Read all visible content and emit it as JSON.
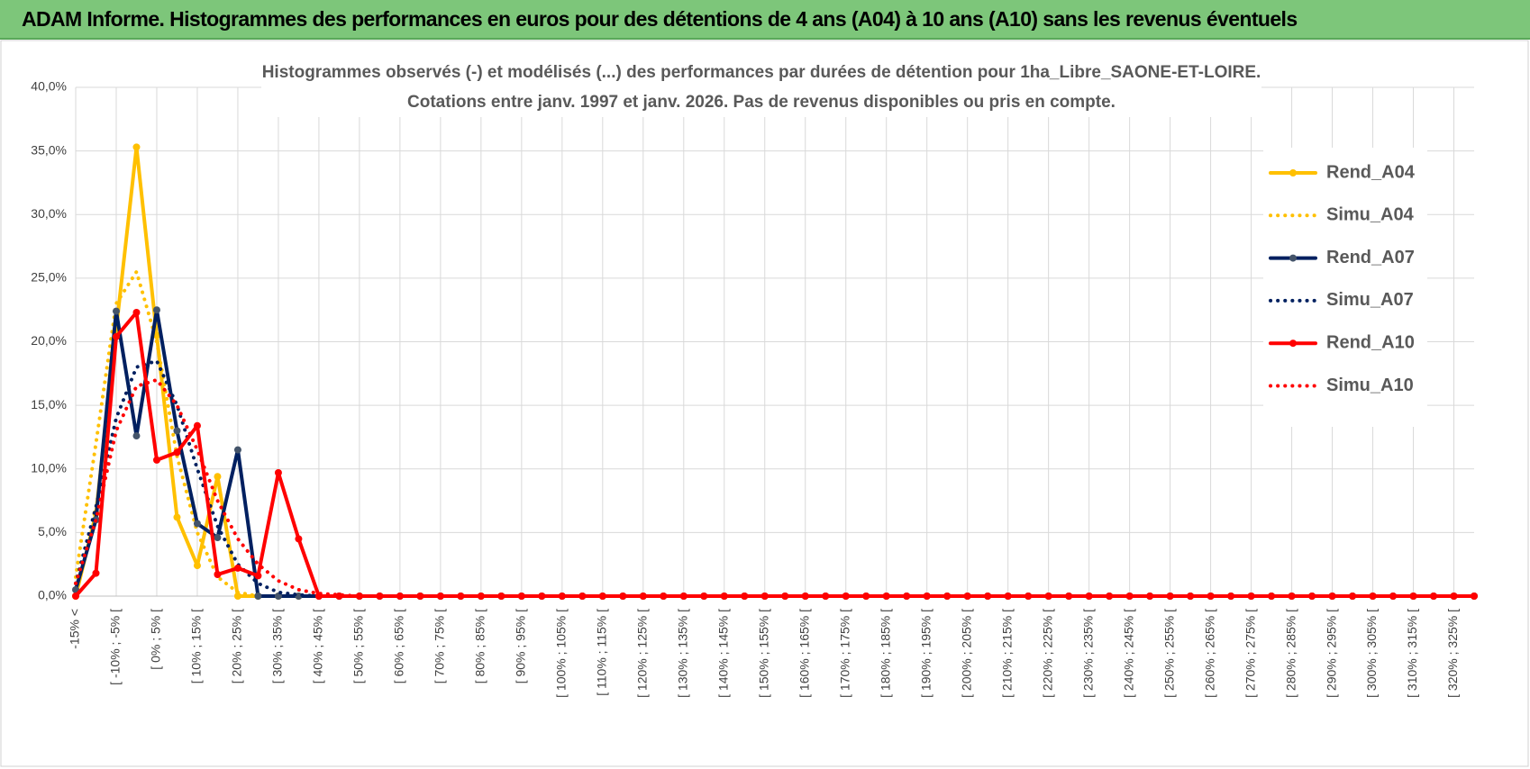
{
  "banner": {
    "title": "ADAM Informe. Histogrammes des performances en euros pour des détentions de 4 ans (A04) à 10 ans (A10) sans les revenus éventuels"
  },
  "chart_data": {
    "type": "line",
    "title": "Histogrammes observés (-) et modélisés (...) des performances par durées de détention pour 1ha_Libre_SAONE-ET-LOIRE.",
    "subtitle": "Cotations entre janv. 1997 et janv. 2026. Pas de revenus disponibles ou pris en compte.",
    "categories": [
      "-15% <",
      null,
      "[ -10% ; -5% [",
      null,
      "[ 0% ; 5% [",
      null,
      "[ 10% ; 15% [",
      null,
      "[ 20% ; 25% [",
      null,
      "[ 30% ; 35% [",
      null,
      "[ 40% ; 45% [",
      null,
      "[ 50% ; 55% [",
      null,
      "[ 60% ; 65% [",
      null,
      "[ 70% ; 75% [",
      null,
      "[ 80% ; 85% [",
      null,
      "[ 90% ; 95% [",
      null,
      "[ 100% ; 105% [",
      null,
      "[ 110% ; 115% [",
      null,
      "[ 120% ; 125% [",
      null,
      "[ 130% ; 135% [",
      null,
      "[ 140% ; 145% [",
      null,
      "[ 150% ; 155% [",
      null,
      "[ 160% ; 165% [",
      null,
      "[ 170% ; 175% [",
      null,
      "[ 180% ; 185% [",
      null,
      "[ 190% ; 195% [",
      null,
      "[ 200% ; 205% [",
      null,
      "[ 210% ; 215% [",
      null,
      "[ 220% ; 225% [",
      null,
      "[ 230% ; 235% [",
      null,
      "[ 240% ; 245% [",
      null,
      "[ 250% ; 255% [",
      null,
      "[ 260% ; 265% [",
      null,
      "[ 270% ; 275% [",
      null,
      "[ 280% ; 285% [",
      null,
      "[ 290% ; 295% [",
      null,
      "[ 300% ; 305% [",
      null,
      "[ 310% ; 315% [",
      null,
      "[ 320% ; 325% [",
      null
    ],
    "series": [
      {
        "name": "Rend_A04",
        "color": "#FFC000",
        "dash": "solid",
        "markers": true,
        "values": [
          0,
          6.5,
          21,
          35.3,
          20.5,
          6.2,
          2.4,
          9.4,
          0,
          0,
          0,
          0,
          0,
          0,
          0,
          0,
          0,
          0,
          0,
          0,
          0,
          0,
          0,
          0,
          0,
          0,
          0,
          0,
          0,
          0,
          0,
          0,
          0,
          0,
          0,
          0,
          0,
          0,
          0,
          0,
          0,
          0,
          0,
          0,
          0,
          0,
          0,
          0,
          0,
          0,
          0,
          0,
          0,
          0,
          0,
          0,
          0,
          0,
          0,
          0,
          0,
          0,
          0,
          0,
          0,
          0,
          0,
          0,
          0,
          0
        ]
      },
      {
        "name": "Simu_A04",
        "color": "#FFC000",
        "dash": "dotted",
        "markers": false,
        "values": [
          1.5,
          12,
          23,
          25.5,
          20,
          11,
          5,
          1.5,
          0.3,
          0,
          0,
          0,
          0,
          0,
          0,
          0,
          0,
          0,
          0,
          0,
          0,
          0,
          0,
          0,
          0,
          0,
          0,
          0,
          0,
          0,
          0,
          0,
          0,
          0,
          0,
          0,
          0,
          0,
          0,
          0,
          0,
          0,
          0,
          0,
          0,
          0,
          0,
          0,
          0,
          0,
          0,
          0,
          0,
          0,
          0,
          0,
          0,
          0,
          0,
          0,
          0,
          0,
          0,
          0,
          0,
          0,
          0,
          0,
          0,
          0
        ]
      },
      {
        "name": "Rend_A07",
        "color": "#002060",
        "marker_color": "#44546A",
        "dash": "solid",
        "markers": true,
        "values": [
          0.5,
          6,
          22.4,
          12.6,
          22.5,
          13,
          5.7,
          4.6,
          11.5,
          0,
          0,
          0,
          0,
          0,
          0,
          0,
          0,
          0,
          0,
          0,
          0,
          0,
          0,
          0,
          0,
          0,
          0,
          0,
          0,
          0,
          0,
          0,
          0,
          0,
          0,
          0,
          0,
          0,
          0,
          0,
          0,
          0,
          0,
          0,
          0,
          0,
          0,
          0,
          0,
          0,
          0,
          0,
          0,
          0,
          0,
          0,
          0,
          0,
          0,
          0,
          0,
          0,
          0,
          0,
          0,
          0,
          0,
          0,
          0,
          0
        ]
      },
      {
        "name": "Simu_A07",
        "color": "#002060",
        "dash": "dotted",
        "markers": false,
        "values": [
          1,
          7,
          14,
          18,
          18.5,
          15,
          10,
          5.5,
          2.5,
          1,
          0.3,
          0.1,
          0,
          0,
          0,
          0,
          0,
          0,
          0,
          0,
          0,
          0,
          0,
          0,
          0,
          0,
          0,
          0,
          0,
          0,
          0,
          0,
          0,
          0,
          0,
          0,
          0,
          0,
          0,
          0,
          0,
          0,
          0,
          0,
          0,
          0,
          0,
          0,
          0,
          0,
          0,
          0,
          0,
          0,
          0,
          0,
          0,
          0,
          0,
          0,
          0,
          0,
          0,
          0,
          0,
          0,
          0,
          0,
          0,
          0
        ]
      },
      {
        "name": "Rend_A10",
        "color": "#FF0000",
        "dash": "solid",
        "markers": true,
        "values": [
          0,
          1.8,
          20.4,
          22.3,
          10.7,
          11.3,
          13.4,
          1.7,
          2.2,
          1.6,
          9.7,
          4.5,
          0,
          0,
          0,
          0,
          0,
          0,
          0,
          0,
          0,
          0,
          0,
          0,
          0,
          0,
          0,
          0,
          0,
          0,
          0,
          0,
          0,
          0,
          0,
          0,
          0,
          0,
          0,
          0,
          0,
          0,
          0,
          0,
          0,
          0,
          0,
          0,
          0,
          0,
          0,
          0,
          0,
          0,
          0,
          0,
          0,
          0,
          0,
          0,
          0,
          0,
          0,
          0,
          0,
          0,
          0,
          0,
          0,
          0
        ]
      },
      {
        "name": "Simu_A10",
        "color": "#FF0000",
        "dash": "dotted",
        "markers": false,
        "values": [
          1,
          6,
          13,
          16.5,
          17,
          15,
          11.5,
          7.5,
          4.5,
          2.5,
          1.2,
          0.5,
          0.2,
          0.1,
          0,
          0,
          0,
          0,
          0,
          0,
          0,
          0,
          0,
          0,
          0,
          0,
          0,
          0,
          0,
          0,
          0,
          0,
          0,
          0,
          0,
          0,
          0,
          0,
          0,
          0,
          0,
          0,
          0,
          0,
          0,
          0,
          0,
          0,
          0,
          0,
          0,
          0,
          0,
          0,
          0,
          0,
          0,
          0,
          0,
          0,
          0,
          0,
          0,
          0,
          0,
          0,
          0,
          0,
          0,
          0
        ]
      }
    ],
    "ylim": [
      0,
      40
    ],
    "yticks": [
      {
        "value": 0,
        "label": "0,0%"
      },
      {
        "value": 5,
        "label": "5,0%"
      },
      {
        "value": 10,
        "label": "10,0%"
      },
      {
        "value": 15,
        "label": "15,0%"
      },
      {
        "value": 20,
        "label": "20,0%"
      },
      {
        "value": 25,
        "label": "25,0%"
      },
      {
        "value": 30,
        "label": "30,0%"
      },
      {
        "value": 35,
        "label": "35,0%"
      },
      {
        "value": 40,
        "label": "40,0%"
      }
    ],
    "grid": true,
    "legend": "right"
  }
}
